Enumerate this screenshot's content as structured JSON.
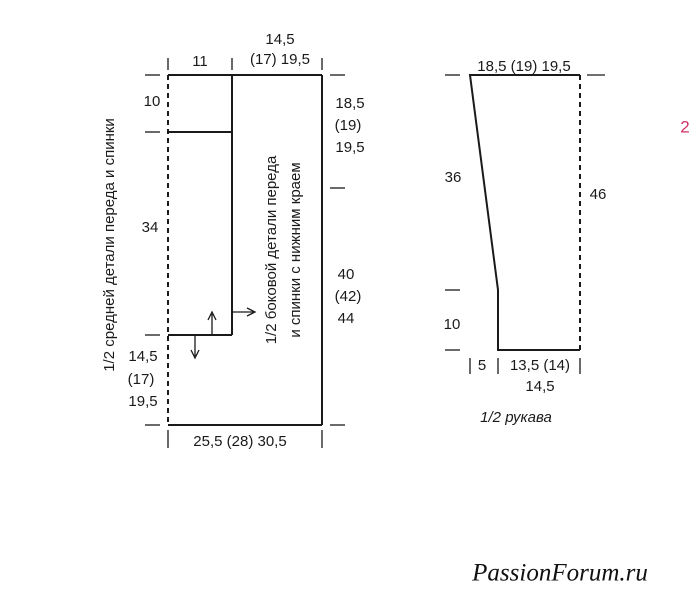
{
  "body": {
    "dimensions_top": "14,5",
    "dimensions_top_sizes": "(17) 19,5",
    "inner_top_width": "11",
    "upper_left_height": "10",
    "right_upper": [
      "18,5",
      "(19)",
      "19,5"
    ],
    "left_middle_height": "34",
    "right_lower": [
      "40",
      "(42)",
      "44"
    ],
    "left_lower": [
      "14,5",
      "(17)",
      "19,5"
    ],
    "bottom_width": "25,5 (28) 30,5",
    "middle_piece_label": "1/2 средней детали переда и спинки",
    "side_piece_label": [
      "1/2 боковой детали переда",
      "и спинки с нижним краем"
    ]
  },
  "sleeve": {
    "top_width": "18,5 (19) 19,5",
    "left_height": "36",
    "right_height": "46",
    "lower_height": "10",
    "bottom_offset": "5",
    "bottom_width_sizes": "13,5 (14)",
    "bottom_width_last": "14,5",
    "label": "1/2 рукава"
  },
  "page_number": "2",
  "watermark": "PassionForum.ru"
}
